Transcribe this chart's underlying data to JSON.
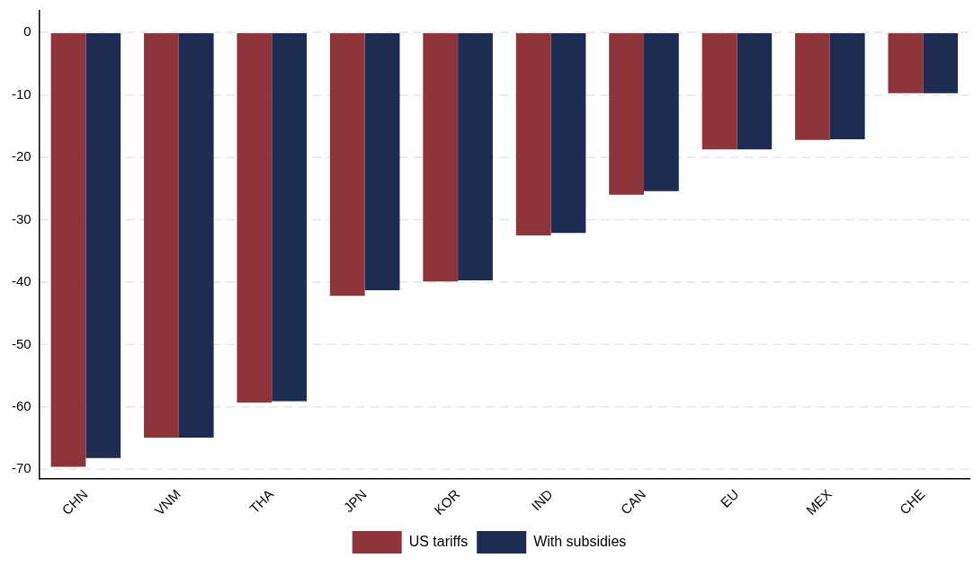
{
  "chart_data": {
    "type": "bar",
    "categories": [
      "CHN",
      "VNM",
      "THA",
      "JPN",
      "KOR",
      "IND",
      "CAN",
      "EU",
      "MEX",
      "CHE"
    ],
    "series": [
      {
        "name": "US tariffs",
        "color": "#8e353c",
        "values": [
          -69.6,
          -64.9,
          -59.3,
          -42.2,
          -39.9,
          -32.5,
          -26.0,
          -18.7,
          -17.2,
          -9.7
        ]
      },
      {
        "name": "With subsidies",
        "color": "#1e2b52",
        "values": [
          -68.2,
          -64.9,
          -59.1,
          -41.3,
          -39.7,
          -32.1,
          -25.4,
          -18.7,
          -17.1,
          -9.7
        ]
      }
    ],
    "ylim": [
      -71.5,
      3.5
    ],
    "yticks": [
      0,
      -10,
      -20,
      -30,
      -40,
      -50,
      -60,
      -70
    ],
    "grid": "y",
    "legend": "bottom"
  }
}
